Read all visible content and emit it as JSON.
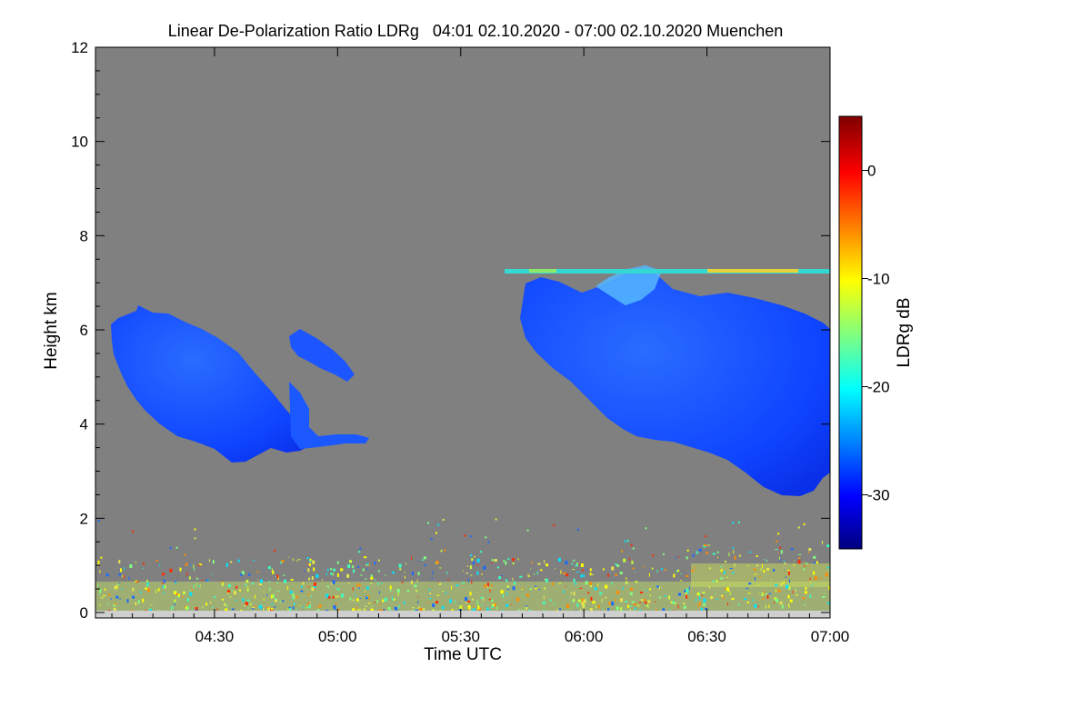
{
  "chart_data": {
    "type": "heatmap",
    "title": "Linear De-Polarization Ratio LDRg   04:01 02.10.2020 - 07:00 02.10.2020 Muenchen",
    "xlabel": "Time UTC",
    "ylabel": "Height km",
    "xlim": [
      "04:01",
      "07:00"
    ],
    "xlim_minutes": [
      241,
      420
    ],
    "ylim": [
      0,
      12
    ],
    "x_ticks": [
      {
        "label": "04:30",
        "minutes": 270
      },
      {
        "label": "05:00",
        "minutes": 300
      },
      {
        "label": "05:30",
        "minutes": 330
      },
      {
        "label": "06:00",
        "minutes": 360
      },
      {
        "label": "06:30",
        "minutes": 390
      },
      {
        "label": "07:00",
        "minutes": 420
      }
    ],
    "y_ticks": [
      0,
      2,
      4,
      6,
      8,
      10,
      12
    ],
    "colorbar": {
      "label": "LDRg dB",
      "range": [
        -35,
        5
      ],
      "ticks": [
        0,
        -10,
        -20,
        -30
      ],
      "colormap": "jet"
    },
    "background_color": "#808080",
    "features": [
      {
        "name": "cloud layer 1",
        "time_start": "04:03",
        "time_end": "05:06",
        "base_km": 3.3,
        "top_km": 6.5,
        "ldr_db": -28
      },
      {
        "name": "cloud layer 2",
        "time_start": "05:46",
        "time_end": "07:00",
        "base_km": 2.6,
        "top_km": 7.6,
        "ldr_db": -28
      },
      {
        "name": "thin layer",
        "time_start": "05:48",
        "time_end": "07:00",
        "base_km": 7.25,
        "top_km": 7.35,
        "ldr_db": -15
      },
      {
        "name": "boundary layer aerosol",
        "time_start": "04:01",
        "time_end": "07:00",
        "base_km": 0.0,
        "top_km": 1.2,
        "ldr_db": -12
      }
    ]
  }
}
